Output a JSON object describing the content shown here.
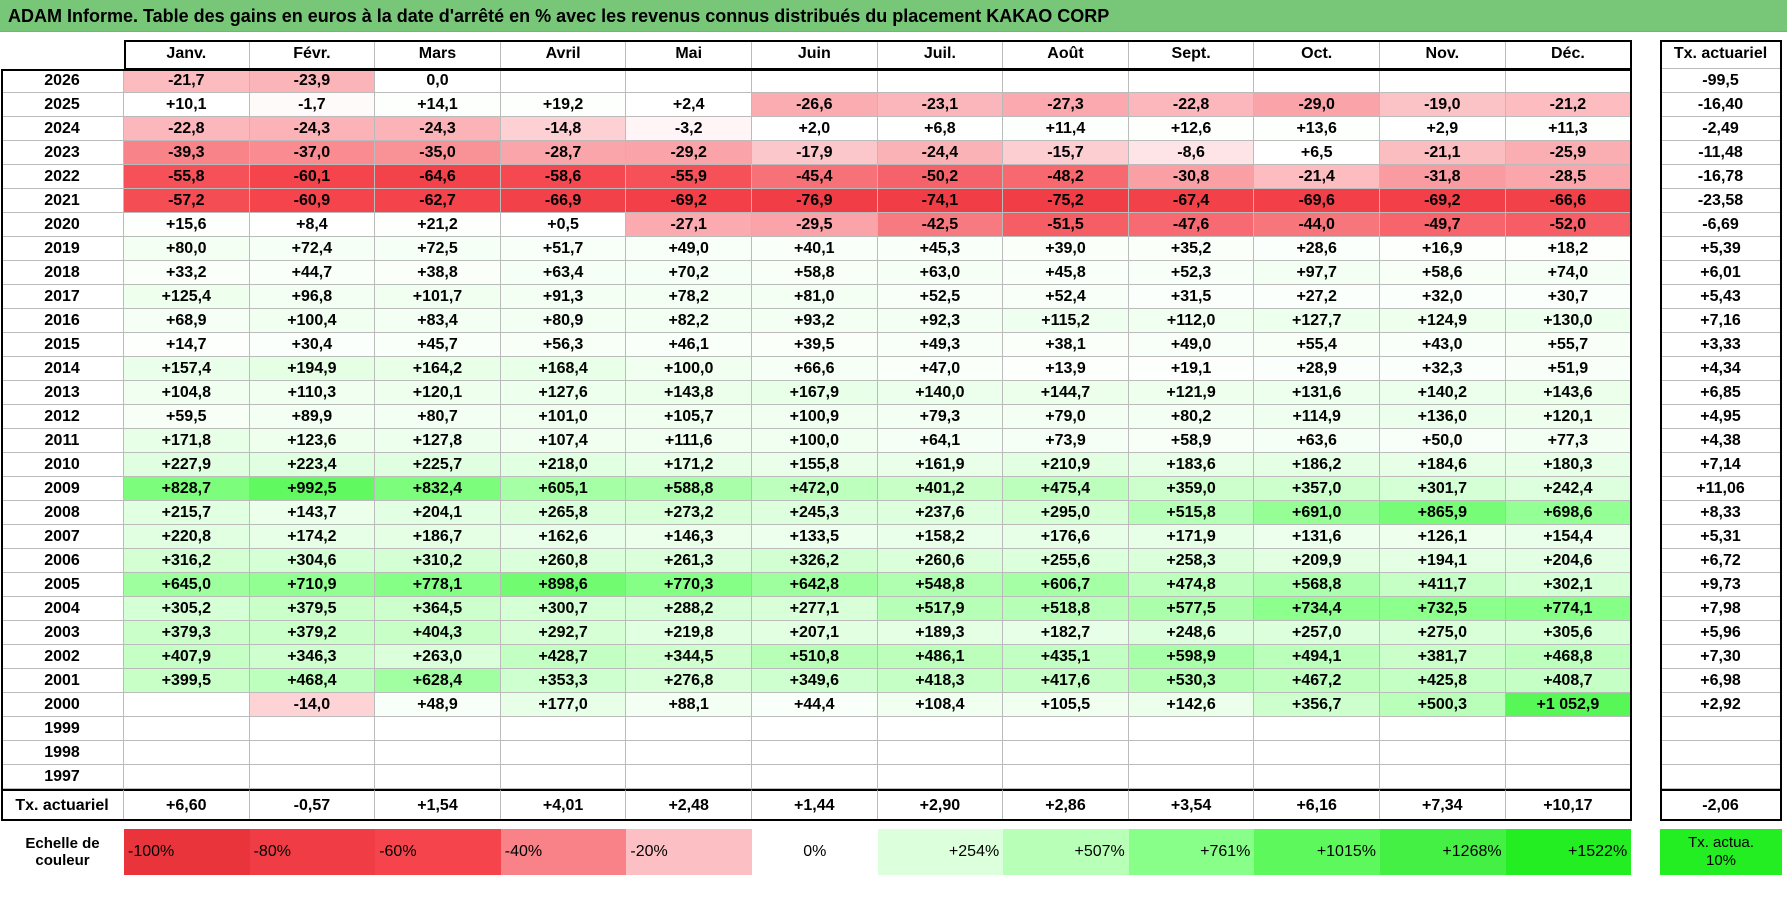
{
  "header": {
    "title": "ADAM Informe. Table des gains en euros à la date d'arrêté en % avec les revenus connus distribués du placement KAKAO CORP"
  },
  "table": {
    "months": [
      "Janv.",
      "Févr.",
      "Mars",
      "Avril",
      "Mai",
      "Juin",
      "Juil.",
      "Août",
      "Sept.",
      "Oct.",
      "Nov.",
      "Déc."
    ],
    "rate_header": "Tx. actuariel",
    "rows": [
      {
        "year": "2026",
        "values": [
          "-21,7",
          "-23,9",
          "0,0",
          null,
          null,
          null,
          null,
          null,
          null,
          null,
          null,
          null
        ],
        "rate": "-99,5"
      },
      {
        "year": "2025",
        "values": [
          "+10,1",
          "-1,7",
          "+14,1",
          "+19,2",
          "+2,4",
          "-26,6",
          "-23,1",
          "-27,3",
          "-22,8",
          "-29,0",
          "-19,0",
          "-21,2"
        ],
        "rate": "-16,40"
      },
      {
        "year": "2024",
        "values": [
          "-22,8",
          "-24,3",
          "-24,3",
          "-14,8",
          "-3,2",
          "+2,0",
          "+6,8",
          "+11,4",
          "+12,6",
          "+13,6",
          "+2,9",
          "+11,3"
        ],
        "rate": "-2,49"
      },
      {
        "year": "2023",
        "values": [
          "-39,3",
          "-37,0",
          "-35,0",
          "-28,7",
          "-29,2",
          "-17,9",
          "-24,4",
          "-15,7",
          "-8,6",
          "+6,5",
          "-21,1",
          "-25,9"
        ],
        "rate": "-11,48"
      },
      {
        "year": "2022",
        "values": [
          "-55,8",
          "-60,1",
          "-64,6",
          "-58,6",
          "-55,9",
          "-45,4",
          "-50,2",
          "-48,2",
          "-30,8",
          "-21,4",
          "-31,8",
          "-28,5"
        ],
        "rate": "-16,78"
      },
      {
        "year": "2021",
        "values": [
          "-57,2",
          "-60,9",
          "-62,7",
          "-66,9",
          "-69,2",
          "-76,9",
          "-74,1",
          "-75,2",
          "-67,4",
          "-69,6",
          "-69,2",
          "-66,6"
        ],
        "rate": "-23,58"
      },
      {
        "year": "2020",
        "values": [
          "+15,6",
          "+8,4",
          "+21,2",
          "+0,5",
          "-27,1",
          "-29,5",
          "-42,5",
          "-51,5",
          "-47,6",
          "-44,0",
          "-49,7",
          "-52,0"
        ],
        "rate": "-6,69"
      },
      {
        "year": "2019",
        "values": [
          "+80,0",
          "+72,4",
          "+72,5",
          "+51,7",
          "+49,0",
          "+40,1",
          "+45,3",
          "+39,0",
          "+35,2",
          "+28,6",
          "+16,9",
          "+18,2"
        ],
        "rate": "+5,39"
      },
      {
        "year": "2018",
        "values": [
          "+33,2",
          "+44,7",
          "+38,8",
          "+63,4",
          "+70,2",
          "+58,8",
          "+63,0",
          "+45,8",
          "+52,3",
          "+97,7",
          "+58,6",
          "+74,0"
        ],
        "rate": "+6,01"
      },
      {
        "year": "2017",
        "values": [
          "+125,4",
          "+96,8",
          "+101,7",
          "+91,3",
          "+78,2",
          "+81,0",
          "+52,5",
          "+52,4",
          "+31,5",
          "+27,2",
          "+32,0",
          "+30,7"
        ],
        "rate": "+5,43"
      },
      {
        "year": "2016",
        "values": [
          "+68,9",
          "+100,4",
          "+83,4",
          "+80,9",
          "+82,2",
          "+93,2",
          "+92,3",
          "+115,2",
          "+112,0",
          "+127,7",
          "+124,9",
          "+130,0"
        ],
        "rate": "+7,16"
      },
      {
        "year": "2015",
        "values": [
          "+14,7",
          "+30,4",
          "+45,7",
          "+56,3",
          "+46,1",
          "+39,5",
          "+49,3",
          "+38,1",
          "+49,0",
          "+55,4",
          "+43,0",
          "+55,7"
        ],
        "rate": "+3,33"
      },
      {
        "year": "2014",
        "values": [
          "+157,4",
          "+194,9",
          "+164,2",
          "+168,4",
          "+100,0",
          "+66,6",
          "+47,0",
          "+13,9",
          "+19,1",
          "+28,9",
          "+32,3",
          "+51,9"
        ],
        "rate": "+4,34"
      },
      {
        "year": "2013",
        "values": [
          "+104,8",
          "+110,3",
          "+120,1",
          "+127,6",
          "+143,8",
          "+167,9",
          "+140,0",
          "+144,7",
          "+121,9",
          "+131,6",
          "+140,2",
          "+143,6"
        ],
        "rate": "+6,85"
      },
      {
        "year": "2012",
        "values": [
          "+59,5",
          "+89,9",
          "+80,7",
          "+101,0",
          "+105,7",
          "+100,9",
          "+79,3",
          "+79,0",
          "+80,2",
          "+114,9",
          "+136,0",
          "+120,1"
        ],
        "rate": "+4,95"
      },
      {
        "year": "2011",
        "values": [
          "+171,8",
          "+123,6",
          "+127,8",
          "+107,4",
          "+111,6",
          "+100,0",
          "+64,1",
          "+73,9",
          "+58,9",
          "+63,6",
          "+50,0",
          "+77,3"
        ],
        "rate": "+4,38"
      },
      {
        "year": "2010",
        "values": [
          "+227,9",
          "+223,4",
          "+225,7",
          "+218,0",
          "+171,2",
          "+155,8",
          "+161,9",
          "+210,9",
          "+183,6",
          "+186,2",
          "+184,6",
          "+180,3"
        ],
        "rate": "+7,14"
      },
      {
        "year": "2009",
        "values": [
          "+828,7",
          "+992,5",
          "+832,4",
          "+605,1",
          "+588,8",
          "+472,0",
          "+401,2",
          "+475,4",
          "+359,0",
          "+357,0",
          "+301,7",
          "+242,4"
        ],
        "rate": "+11,06"
      },
      {
        "year": "2008",
        "values": [
          "+215,7",
          "+143,7",
          "+204,1",
          "+265,8",
          "+273,2",
          "+245,3",
          "+237,6",
          "+295,0",
          "+515,8",
          "+691,0",
          "+865,9",
          "+698,6"
        ],
        "rate": "+8,33"
      },
      {
        "year": "2007",
        "values": [
          "+220,8",
          "+174,2",
          "+186,7",
          "+162,6",
          "+146,3",
          "+133,5",
          "+158,2",
          "+176,6",
          "+171,9",
          "+131,6",
          "+126,1",
          "+154,4"
        ],
        "rate": "+5,31"
      },
      {
        "year": "2006",
        "values": [
          "+316,2",
          "+304,6",
          "+310,2",
          "+260,8",
          "+261,3",
          "+326,2",
          "+260,6",
          "+255,6",
          "+258,3",
          "+209,9",
          "+194,1",
          "+204,6"
        ],
        "rate": "+6,72"
      },
      {
        "year": "2005",
        "values": [
          "+645,0",
          "+710,9",
          "+778,1",
          "+898,6",
          "+770,3",
          "+642,8",
          "+548,8",
          "+606,7",
          "+474,8",
          "+568,8",
          "+411,7",
          "+302,1"
        ],
        "rate": "+9,73"
      },
      {
        "year": "2004",
        "values": [
          "+305,2",
          "+379,5",
          "+364,5",
          "+300,7",
          "+288,2",
          "+277,1",
          "+517,9",
          "+518,8",
          "+577,5",
          "+734,4",
          "+732,5",
          "+774,1"
        ],
        "rate": "+7,98"
      },
      {
        "year": "2003",
        "values": [
          "+379,3",
          "+379,2",
          "+404,3",
          "+292,7",
          "+219,8",
          "+207,1",
          "+189,3",
          "+182,7",
          "+248,6",
          "+257,0",
          "+275,0",
          "+305,6"
        ],
        "rate": "+5,96"
      },
      {
        "year": "2002",
        "values": [
          "+407,9",
          "+346,3",
          "+263,0",
          "+428,7",
          "+344,5",
          "+510,8",
          "+486,1",
          "+435,1",
          "+598,9",
          "+494,1",
          "+381,7",
          "+468,8"
        ],
        "rate": "+7,30"
      },
      {
        "year": "2001",
        "values": [
          "+399,5",
          "+468,4",
          "+628,4",
          "+353,3",
          "+276,8",
          "+349,6",
          "+418,3",
          "+417,6",
          "+530,3",
          "+467,2",
          "+425,8",
          "+408,7"
        ],
        "rate": "+6,98"
      },
      {
        "year": "2000",
        "values": [
          null,
          "-14,0",
          "+48,9",
          "+177,0",
          "+88,1",
          "+44,4",
          "+108,4",
          "+105,5",
          "+142,6",
          "+356,7",
          "+500,3",
          "+1 052,9"
        ],
        "rate": "+2,92"
      },
      {
        "year": "1999",
        "values": [
          null,
          null,
          null,
          null,
          null,
          null,
          null,
          null,
          null,
          null,
          null,
          null
        ],
        "rate": null
      },
      {
        "year": "1998",
        "values": [
          null,
          null,
          null,
          null,
          null,
          null,
          null,
          null,
          null,
          null,
          null,
          null
        ],
        "rate": null
      },
      {
        "year": "1997",
        "values": [
          null,
          null,
          null,
          null,
          null,
          null,
          null,
          null,
          null,
          null,
          null,
          null
        ],
        "rate": null
      }
    ],
    "footer": {
      "label": "Tx. actuariel",
      "values": [
        "+6,60",
        "-0,57",
        "+1,54",
        "+4,01",
        "+2,48",
        "+1,44",
        "+2,90",
        "+2,86",
        "+3,54",
        "+6,16",
        "+7,34",
        "+10,17"
      ],
      "rate": "-2,06"
    }
  },
  "legend": {
    "label": "Echelle de couleur",
    "labels": [
      "-100%",
      "-80%",
      "-60%",
      "-40%",
      "-20%",
      "0%",
      "+254%",
      "+507%",
      "+761%",
      "+1015%",
      "+1268%",
      "+1522%"
    ],
    "colors": [
      "#e9343c",
      "#f03c44",
      "#f5444c",
      "#f88288",
      "#fcc0c4",
      "#ffffff",
      "#dcffdc",
      "#b8ffb8",
      "#88ff88",
      "#5cf85c",
      "#44f044",
      "#22ee22"
    ],
    "rate_label": "Tx. actua. 10%",
    "rate_color": "#22ee22"
  }
}
